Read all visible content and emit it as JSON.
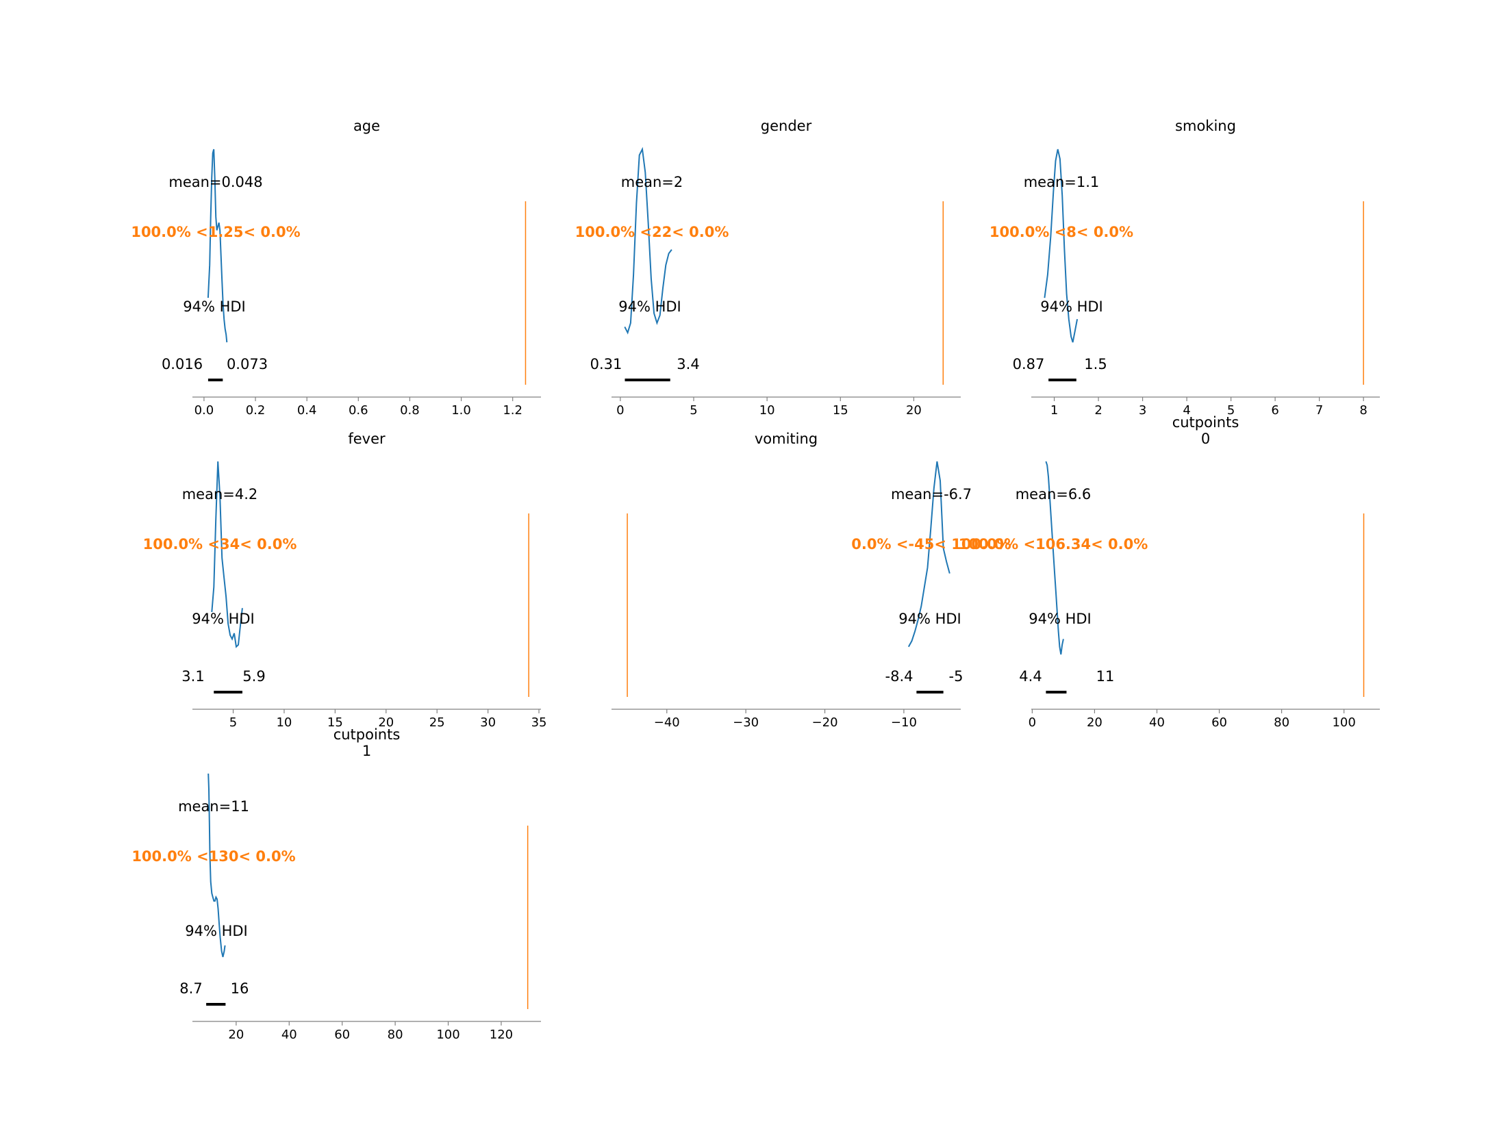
{
  "colors": {
    "density": "#1f77b4",
    "ref_line": "#ff7f0e",
    "hdi_bar": "#000000",
    "axis": "#808080",
    "text": "#000000"
  },
  "chart_data": [
    {
      "type": "line",
      "title": [
        "age"
      ],
      "xlim": [
        -0.045,
        1.31
      ],
      "ticks": [
        "0.0",
        "0.2",
        "0.4",
        "0.6",
        "0.8",
        "1.0",
        "1.2"
      ],
      "tick_values": [
        0,
        0.2,
        0.4,
        0.6,
        0.8,
        1.0,
        1.2
      ],
      "mean_label": "mean=0.048",
      "ref_value": 1.25,
      "ref_label": "100.0% <1.25< 0.0%",
      "hdi_label": "94% HDI",
      "hdi": [
        0.016,
        0.073
      ],
      "hdi_low_label": "0.016",
      "hdi_high_label": "0.073",
      "density": {
        "x": [
          0.016,
          0.022,
          0.026,
          0.03,
          0.034,
          0.038,
          0.042,
          0.046,
          0.05,
          0.054,
          0.058,
          0.062,
          0.066,
          0.07,
          0.074,
          0.078,
          0.082,
          0.086,
          0.089
        ],
        "y": [
          0.23,
          0.4,
          0.65,
          0.85,
          0.98,
          1.0,
          0.85,
          0.65,
          0.58,
          0.6,
          0.62,
          0.58,
          0.45,
          0.32,
          0.2,
          0.12,
          0.07,
          0.04,
          0.0
        ]
      }
    },
    {
      "type": "line",
      "title": [
        "gender"
      ],
      "xlim": [
        -0.6,
        23.2
      ],
      "ticks": [
        "0",
        "5",
        "10",
        "15",
        "20"
      ],
      "tick_values": [
        0,
        5,
        10,
        15,
        20
      ],
      "mean_label": "mean=2",
      "ref_value": 22,
      "ref_label": "100.0% <22< 0.0%",
      "hdi_label": "94% HDI",
      "hdi": [
        0.31,
        3.4
      ],
      "hdi_low_label": "0.31",
      "hdi_high_label": "3.4",
      "density": {
        "x": [
          0.3,
          0.5,
          0.7,
          0.9,
          1.1,
          1.3,
          1.5,
          1.7,
          1.9,
          2.1,
          2.3,
          2.5,
          2.7,
          2.9,
          3.1,
          3.3,
          3.5
        ],
        "y": [
          0.08,
          0.05,
          0.1,
          0.35,
          0.72,
          0.97,
          1.0,
          0.88,
          0.62,
          0.33,
          0.15,
          0.1,
          0.14,
          0.28,
          0.4,
          0.46,
          0.48
        ]
      }
    },
    {
      "type": "line",
      "title": [
        "smoking"
      ],
      "xlim": [
        0.48,
        8.37
      ],
      "ticks": [
        "1",
        "2",
        "3",
        "4",
        "5",
        "6",
        "7",
        "8"
      ],
      "tick_values": [
        1,
        2,
        3,
        4,
        5,
        6,
        7,
        8
      ],
      "mean_label": "mean=1.1",
      "ref_value": 8,
      "ref_label": "100.0% <8< 0.0%",
      "hdi_label": "94% HDI",
      "hdi": [
        0.87,
        1.5
      ],
      "hdi_low_label": "0.87",
      "hdi_high_label": "1.5",
      "density": {
        "x": [
          0.78,
          0.85,
          0.92,
          0.98,
          1.03,
          1.08,
          1.13,
          1.18,
          1.23,
          1.28,
          1.33,
          1.38,
          1.42,
          1.47,
          1.52
        ],
        "y": [
          0.23,
          0.35,
          0.55,
          0.78,
          0.94,
          1.0,
          0.95,
          0.76,
          0.48,
          0.25,
          0.12,
          0.03,
          0.0,
          0.06,
          0.12
        ]
      }
    },
    {
      "type": "line",
      "title": [
        "fever"
      ],
      "xlim": [
        1.0,
        35.2
      ],
      "ticks": [
        "5",
        "10",
        "15",
        "20",
        "25",
        "30",
        "35"
      ],
      "tick_values": [
        5,
        10,
        15,
        20,
        25,
        30,
        35
      ],
      "mean_label": "mean=4.2",
      "ref_value": 34,
      "ref_label": "100.0% <34< 0.0%",
      "hdi_label": "94% HDI",
      "hdi": [
        3.1,
        5.9
      ],
      "hdi_low_label": "3.1",
      "hdi_high_label": "5.9",
      "density": {
        "x": [
          2.9,
          3.1,
          3.3,
          3.5,
          3.7,
          3.9,
          4.1,
          4.3,
          4.5,
          4.7,
          4.9,
          5.1,
          5.3,
          5.5,
          5.7,
          5.9
        ],
        "y": [
          0.22,
          0.35,
          0.7,
          1.0,
          0.82,
          0.5,
          0.4,
          0.3,
          0.16,
          0.1,
          0.08,
          0.11,
          0.04,
          0.05,
          0.15,
          0.24
        ]
      }
    },
    {
      "type": "line",
      "title": [
        "vomiting"
      ],
      "xlim": [
        -47.0,
        -2.8
      ],
      "ticks": [
        "−40",
        "−30",
        "−20",
        "−10"
      ],
      "tick_values": [
        -40,
        -30,
        -20,
        -10
      ],
      "mean_label": "mean=-6.7",
      "ref_value": -45,
      "ref_label": "0.0% <-45< 100.0%",
      "hdi_label": "94% HDI",
      "hdi": [
        -8.4,
        -5.0
      ],
      "hdi_low_label": "-8.4",
      "hdi_high_label": "-5",
      "density": {
        "x": [
          -9.4,
          -9.0,
          -8.6,
          -8.2,
          -7.8,
          -7.4,
          -7.0,
          -6.6,
          -6.2,
          -5.8,
          -5.4,
          -5.0,
          -4.6,
          -4.2
        ],
        "y": [
          0.04,
          0.07,
          0.12,
          0.18,
          0.25,
          0.35,
          0.45,
          0.65,
          0.86,
          1.0,
          0.9,
          0.55,
          0.48,
          0.42
        ]
      }
    },
    {
      "type": "line",
      "title": [
        "cutpoints",
        "0"
      ],
      "xlim": [
        -0.3,
        111.5
      ],
      "ticks": [
        "0",
        "20",
        "40",
        "60",
        "80",
        "100"
      ],
      "tick_values": [
        0,
        20,
        40,
        60,
        80,
        100
      ],
      "mean_label": "mean=6.6",
      "ref_value": 106.34,
      "ref_label": "100.0% <106.34< 0.0%",
      "hdi_label": "94% HDI",
      "hdi": [
        4.4,
        11.0
      ],
      "hdi_low_label": "4.4",
      "hdi_high_label": "11",
      "density": {
        "x": [
          4.4,
          4.8,
          5.2,
          5.6,
          6.0,
          6.4,
          6.8,
          7.2,
          7.6,
          8.0,
          8.4,
          8.8,
          9.2,
          9.6,
          10.0
        ],
        "y": [
          1.0,
          0.98,
          0.92,
          0.82,
          0.72,
          0.62,
          0.52,
          0.42,
          0.32,
          0.22,
          0.12,
          0.04,
          0.0,
          0.05,
          0.08
        ]
      }
    },
    {
      "type": "line",
      "title": [
        "cutpoints",
        "1"
      ],
      "xlim": [
        3.5,
        135.0
      ],
      "ticks": [
        "20",
        "40",
        "60",
        "80",
        "100",
        "120"
      ],
      "tick_values": [
        20,
        40,
        60,
        80,
        100,
        120
      ],
      "mean_label": "mean=11",
      "ref_value": 130,
      "ref_label": "100.0% <130< 0.0%",
      "hdi_label": "94% HDI",
      "hdi": [
        8.7,
        16.0
      ],
      "hdi_low_label": "8.7",
      "hdi_high_label": "16",
      "density": {
        "x": [
          9.5,
          9.7,
          9.9,
          10.1,
          10.4,
          10.8,
          11.2,
          11.6,
          12.0,
          12.4,
          12.8,
          13.2,
          13.6,
          14.0,
          14.5,
          15.0,
          15.5,
          15.8
        ],
        "y": [
          1.0,
          0.92,
          0.75,
          0.58,
          0.44,
          0.38,
          0.36,
          0.34,
          0.34,
          0.36,
          0.35,
          0.3,
          0.22,
          0.15,
          0.08,
          0.05,
          0.08,
          0.11
        ]
      }
    }
  ]
}
